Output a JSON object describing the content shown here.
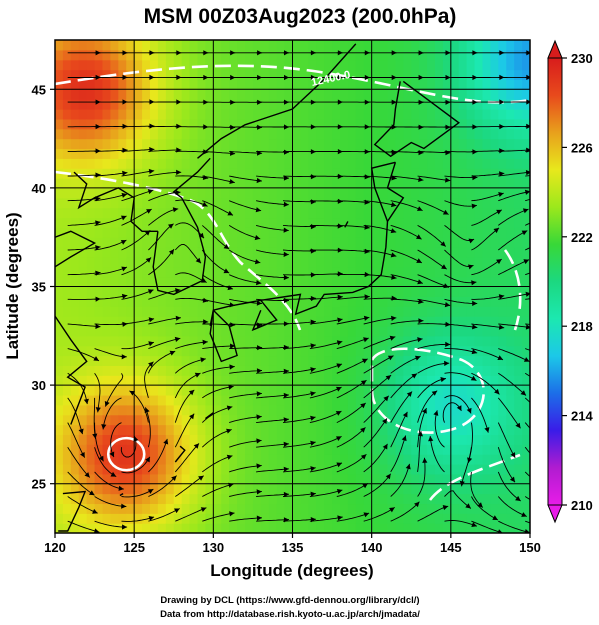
{
  "chart_data": {
    "type": "heatmap",
    "title": "MSM 00Z03Aug2023 (200.0hPa)",
    "xlabel": "Longitude (degrees)",
    "ylabel": "Latitude  (degrees)",
    "xlim": [
      120,
      150
    ],
    "ylim": [
      22.5,
      47.5
    ],
    "xticks": [
      "120",
      "125",
      "130",
      "135",
      "140",
      "145",
      "150"
    ],
    "yticks": [
      "25",
      "30",
      "35",
      "40",
      "45"
    ],
    "grid": true,
    "colorbar": {
      "min": 210,
      "max": 230,
      "ticks": [
        "210",
        "214",
        "218",
        "222",
        "226",
        "230"
      ],
      "colors": [
        "#e81ce8",
        "#b01cd0",
        "#3a1ce8",
        "#1c6ee8",
        "#1cc8e8",
        "#1ce8b0",
        "#1cd880",
        "#38d838",
        "#9ce81c",
        "#e8e81c",
        "#e8a01c",
        "#e84a1c",
        "#d81c1c"
      ]
    },
    "contours": [
      {
        "label": "12400.0",
        "value": 12400.0
      }
    ],
    "temperature_features": [
      {
        "lon": 124.5,
        "lat": 26.5,
        "value": 229,
        "kind": "warm core"
      },
      {
        "lon": 122,
        "lat": 45,
        "value": 229,
        "kind": "warm"
      },
      {
        "lon": 145,
        "lat": 29,
        "value": 219.5,
        "kind": "cool"
      },
      {
        "lon": 150,
        "lat": 46.5,
        "value": 218,
        "kind": "cool"
      }
    ],
    "background_value": 223
  },
  "credits": {
    "line1": "Drawing by DCL (https://www.gfd-dennou.org/library/dcl/)",
    "line2": "Data from http://database.rish.kyoto-u.ac.jp/arch/jmadata/"
  }
}
